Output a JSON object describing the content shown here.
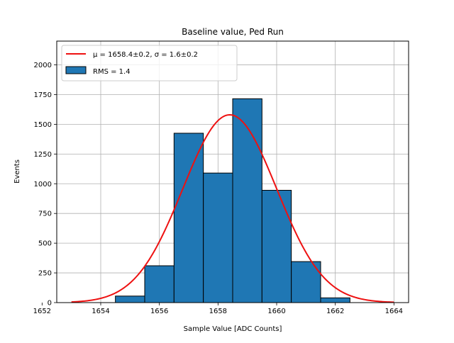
{
  "chart_data": {
    "type": "bar",
    "title": "Baseline value, Ped Run",
    "xlabel": "Sample Value [ADC Counts]",
    "ylabel": "Events",
    "xlim": [
      1652.5,
      1664.5
    ],
    "ylim": [
      0,
      2200
    ],
    "xticks": [
      1652,
      1654,
      1656,
      1658,
      1660,
      1662,
      1664
    ],
    "yticks": [
      0,
      250,
      500,
      750,
      1000,
      1250,
      1500,
      1750,
      2000
    ],
    "grid": true,
    "legend_position": "top-left",
    "bins": [
      {
        "x0": 1654.5,
        "x1": 1655.5,
        "value": 55
      },
      {
        "x0": 1655.5,
        "x1": 1656.5,
        "value": 310
      },
      {
        "x0": 1656.5,
        "x1": 1657.5,
        "value": 1425
      },
      {
        "x0": 1657.5,
        "x1": 1658.5,
        "value": 1090
      },
      {
        "x0": 1658.5,
        "x1": 1659.5,
        "value": 1715
      },
      {
        "x0": 1659.5,
        "x1": 1660.5,
        "value": 945
      },
      {
        "x0": 1660.5,
        "x1": 1661.5,
        "value": 345
      },
      {
        "x0": 1661.5,
        "x1": 1662.5,
        "value": 40
      }
    ],
    "fit": {
      "mu": 1658.4,
      "sigma": 1.6,
      "amplitude": 1580,
      "x_range": [
        1653,
        1664
      ],
      "color": "#ee1111"
    },
    "bar_color": "#1f77b4",
    "legend": [
      {
        "label": "μ = 1658.4±0.2, σ = 1.6±0.2",
        "kind": "line",
        "color": "#ee1111"
      },
      {
        "label": "RMS = 1.4",
        "kind": "patch",
        "color": "#1f77b4"
      }
    ]
  }
}
